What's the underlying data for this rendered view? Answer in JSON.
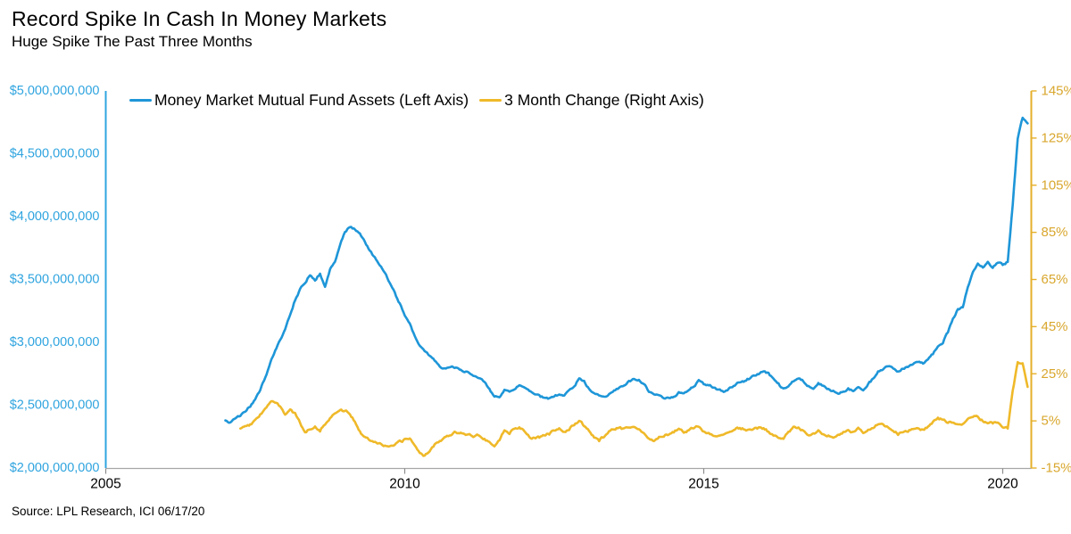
{
  "header": {
    "title": "Record Spike In Cash In Money Markets",
    "subtitle": "Huge Spike The Past Three Months"
  },
  "source_note": "Source: LPL Research, ICI 06/17/20",
  "colors": {
    "assets_line": "#1e96d8",
    "assets_axis": "#2fa4df",
    "change_line": "#efb929",
    "change_axis": "#e5af29",
    "right_label": "#d9a72e",
    "axis_gray": "#a6a6a6",
    "tick_gray": "#8c8c8c",
    "text": "#000000"
  },
  "chart_data": {
    "type": "line",
    "title": "Record Spike In Cash In Money Markets",
    "subtitle": "Huge Spike The Past Three Months",
    "grid": false,
    "legend_position": "top",
    "x_start_year": 2007.0,
    "x_step_months": 1,
    "x_axis": {
      "tick_years": [
        2005,
        2010,
        2015,
        2020
      ],
      "tick_labels": [
        "2005",
        "2010",
        "2015",
        "2020"
      ],
      "range_years": [
        2005,
        2020.48
      ]
    },
    "left_axis": {
      "title": "",
      "min": 2000000000,
      "max": 5000000000,
      "tick_labels": [
        "$5,000,000,000",
        "$4,500,000,000",
        "$4,000,000,000",
        "$3,500,000,000",
        "$3,000,000,000",
        "$2,500,000,000",
        "$2,000,000,000"
      ]
    },
    "right_axis": {
      "title": "",
      "min": -15,
      "max": 145,
      "tick_labels": [
        "145%",
        "125%",
        "105%",
        "85%",
        "65%",
        "45%",
        "25%",
        "5%",
        "-15%"
      ]
    },
    "series": [
      {
        "name": "Money Market Mutual Fund Assets (Left Axis)",
        "axis": "left",
        "units": "billions_usd",
        "values": [
          2.38,
          2.36,
          2.4,
          2.42,
          2.45,
          2.49,
          2.54,
          2.62,
          2.72,
          2.83,
          2.93,
          3.02,
          3.1,
          3.22,
          3.34,
          3.42,
          3.47,
          3.54,
          3.49,
          3.55,
          3.44,
          3.58,
          3.65,
          3.77,
          3.88,
          3.92,
          3.9,
          3.86,
          3.8,
          3.73,
          3.67,
          3.62,
          3.55,
          3.47,
          3.39,
          3.31,
          3.21,
          3.15,
          3.05,
          2.97,
          2.93,
          2.89,
          2.85,
          2.81,
          2.79,
          2.81,
          2.8,
          2.79,
          2.77,
          2.75,
          2.74,
          2.72,
          2.69,
          2.63,
          2.56,
          2.57,
          2.62,
          2.6,
          2.63,
          2.66,
          2.64,
          2.61,
          2.59,
          2.57,
          2.56,
          2.55,
          2.57,
          2.59,
          2.58,
          2.61,
          2.65,
          2.71,
          2.69,
          2.63,
          2.6,
          2.58,
          2.57,
          2.59,
          2.62,
          2.64,
          2.66,
          2.69,
          2.71,
          2.7,
          2.67,
          2.61,
          2.59,
          2.57,
          2.56,
          2.55,
          2.57,
          2.6,
          2.59,
          2.62,
          2.65,
          2.69,
          2.67,
          2.66,
          2.64,
          2.62,
          2.61,
          2.63,
          2.65,
          2.68,
          2.69,
          2.71,
          2.73,
          2.75,
          2.77,
          2.75,
          2.71,
          2.67,
          2.63,
          2.65,
          2.69,
          2.71,
          2.69,
          2.65,
          2.63,
          2.67,
          2.65,
          2.63,
          2.61,
          2.59,
          2.61,
          2.63,
          2.61,
          2.65,
          2.63,
          2.67,
          2.71,
          2.77,
          2.79,
          2.81,
          2.79,
          2.77,
          2.79,
          2.81,
          2.83,
          2.85,
          2.83,
          2.87,
          2.91,
          2.97,
          3.0,
          3.08,
          3.18,
          3.26,
          3.28,
          3.44,
          3.56,
          3.62,
          3.6,
          3.64,
          3.6,
          3.64,
          3.62,
          3.64,
          4.1,
          4.62,
          4.79,
          4.74
        ]
      },
      {
        "name": "3 Month Change (Right Axis)",
        "axis": "right",
        "units": "percent",
        "values": [
          null,
          null,
          null,
          1.8,
          2.5,
          3.5,
          5.0,
          7.5,
          10.5,
          13.5,
          12.5,
          11.0,
          8.0,
          9.5,
          8.0,
          4.0,
          0.5,
          1.5,
          3.0,
          1.0,
          3.5,
          6.5,
          8.5,
          9.0,
          9.5,
          8.0,
          5.0,
          0.5,
          -2.0,
          -3.0,
          -3.5,
          -4.5,
          -5.5,
          -6.0,
          -5.5,
          -4.0,
          -3.0,
          -2.5,
          -5.0,
          -8.5,
          -10.0,
          -7.5,
          -5.0,
          -3.5,
          -2.0,
          -1.0,
          0.5,
          0.0,
          -0.5,
          -1.0,
          -1.5,
          -1.0,
          -2.5,
          -4.0,
          -5.5,
          -3.0,
          1.0,
          0.0,
          1.5,
          2.5,
          1.0,
          -1.5,
          -2.5,
          -2.0,
          -1.0,
          -0.5,
          1.0,
          1.5,
          0.0,
          1.5,
          3.5,
          5.0,
          3.0,
          0.5,
          -2.0,
          -3.5,
          -1.5,
          0.5,
          1.5,
          2.0,
          1.5,
          2.5,
          3.0,
          1.5,
          -0.5,
          -2.5,
          -3.5,
          -2.0,
          -1.5,
          -0.5,
          0.5,
          1.5,
          0.5,
          1.0,
          2.0,
          2.5,
          0.5,
          -0.5,
          -1.5,
          -1.0,
          -0.5,
          0.5,
          1.5,
          2.0,
          1.5,
          1.0,
          1.5,
          2.0,
          1.5,
          0.5,
          -1.0,
          -2.0,
          -2.5,
          0.0,
          2.0,
          2.5,
          0.5,
          -1.5,
          -1.0,
          0.5,
          -0.5,
          -1.0,
          -1.5,
          -1.0,
          0.0,
          1.0,
          0.0,
          1.5,
          0.0,
          1.5,
          2.5,
          4.0,
          3.5,
          2.5,
          1.0,
          -0.5,
          0.5,
          1.0,
          1.5,
          2.0,
          1.0,
          2.5,
          4.5,
          6.0,
          5.5,
          4.5,
          4.0,
          3.0,
          4.0,
          5.5,
          7.0,
          6.5,
          5.0,
          4.5,
          4.0,
          4.5,
          2.5,
          2.0,
          18.0,
          29.5,
          30.0,
          19.0
        ]
      }
    ]
  }
}
